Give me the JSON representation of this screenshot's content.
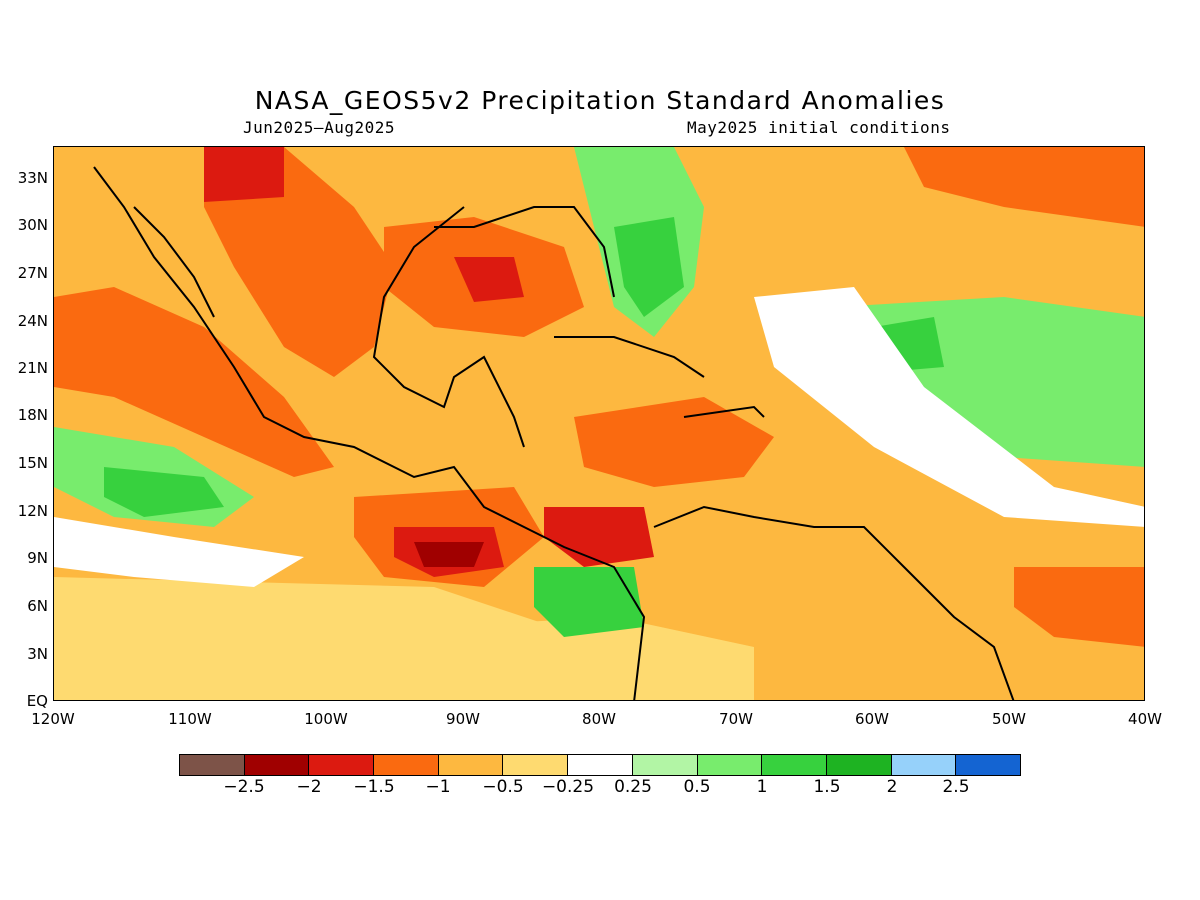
{
  "title": "NASA_GEOS5v2 Precipitation Standard Anomalies",
  "subtitle_left": "Jun2025–Aug2025",
  "subtitle_right": "May2025 initial conditions",
  "latitude_labels": [
    "33N",
    "30N",
    "27N",
    "24N",
    "21N",
    "18N",
    "15N",
    "12N",
    "9N",
    "6N",
    "3N",
    "EQ"
  ],
  "longitude_labels": [
    "120W",
    "110W",
    "100W",
    "90W",
    "80W",
    "70W",
    "60W",
    "50W",
    "40W"
  ],
  "colorbar": {
    "labels": [
      "−2.5",
      "−2",
      "−1.5",
      "−1",
      "−0.5",
      "−0.25",
      "0.25",
      "0.5",
      "1",
      "1.5",
      "2",
      "2.5"
    ],
    "colors": [
      "#7d5348",
      "#a00000",
      "#dc1a10",
      "#fa6a10",
      "#fdb840",
      "#feda70",
      "#ffffff",
      "#b2f5a5",
      "#78ec6d",
      "#37d13e",
      "#1eb322",
      "#96d1fa",
      "#1464d2"
    ]
  }
}
